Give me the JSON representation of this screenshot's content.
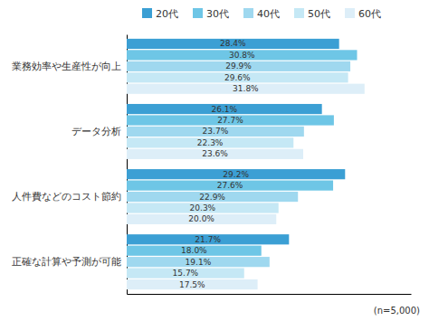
{
  "chart_data": {
    "type": "bar",
    "orientation": "horizontal",
    "categories": [
      "業務効率や生産性が向上",
      "データ分析",
      "人件費などのコスト節約",
      "正確な計算や予測が可能"
    ],
    "series": [
      {
        "name": "20代",
        "color": "#3b9fd4",
        "values": [
          28.4,
          26.1,
          29.2,
          21.7
        ],
        "value_labels": [
          "28.4%",
          "26.1%",
          "29.2%",
          "21.7%"
        ]
      },
      {
        "name": "30代",
        "color": "#6ec6e6",
        "values": [
          30.8,
          27.7,
          27.6,
          18.0
        ],
        "value_labels": [
          "30.8%",
          "27.7%",
          "27.6%",
          "18.0%"
        ]
      },
      {
        "name": "40代",
        "color": "#9fd8ef",
        "values": [
          29.9,
          23.7,
          22.9,
          19.1
        ],
        "value_labels": [
          "29.9%",
          "23.7%",
          "22.9%",
          "19.1%"
        ]
      },
      {
        "name": "50代",
        "color": "#c5e8f5",
        "values": [
          29.6,
          22.3,
          20.3,
          15.7
        ],
        "value_labels": [
          "29.6%",
          "22.3%",
          "20.3%",
          "15.7%"
        ]
      },
      {
        "name": "60代",
        "color": "#ddeef8",
        "values": [
          31.8,
          23.6,
          20.0,
          17.5
        ],
        "value_labels": [
          "31.8%",
          "23.6%",
          "20.0%",
          "17.5%"
        ]
      }
    ],
    "xlim": [
      0,
      38
    ],
    "data_labels": true,
    "tick_labels": "y",
    "legend": "top",
    "grid": false,
    "annotations": [
      "(n=5,000)"
    ]
  }
}
